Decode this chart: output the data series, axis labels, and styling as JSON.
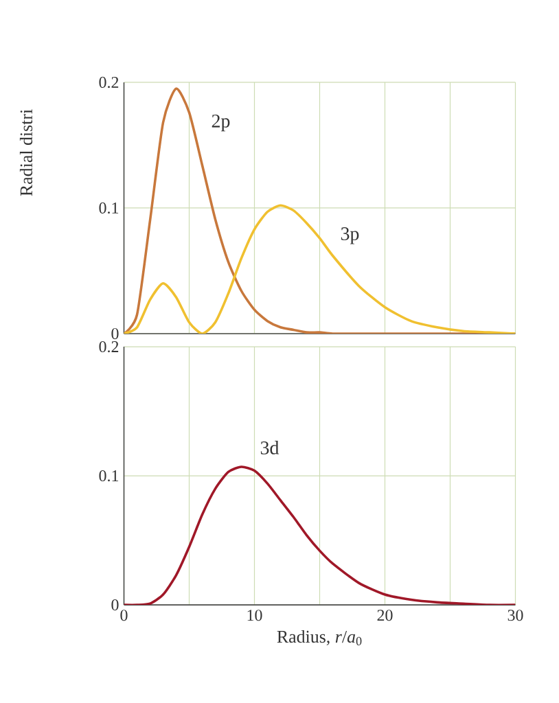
{
  "chart_data": [
    {
      "type": "line",
      "ylabel": "Radial distri",
      "xlim": [
        0,
        30
      ],
      "ylim": [
        0,
        0.2
      ],
      "xticks": [
        {
          "value": 0,
          "label": null
        },
        {
          "value": 5,
          "label": null
        },
        {
          "value": 10,
          "label": null
        },
        {
          "value": 15,
          "label": null
        },
        {
          "value": 20,
          "label": null
        },
        {
          "value": 25,
          "label": null
        },
        {
          "value": 30,
          "label": null
        }
      ],
      "yticks": [
        0,
        0.1,
        0.2
      ],
      "grid": true,
      "tick_labels": "y",
      "x": [
        0,
        1,
        2,
        3,
        4,
        5,
        6,
        7,
        8,
        9,
        10,
        11,
        12,
        13,
        14,
        15,
        16,
        18,
        20,
        22,
        24,
        26,
        28,
        30
      ],
      "series": [
        {
          "name": "2p",
          "color": "#c8783c",
          "values": [
            0,
            0.015,
            0.09,
            0.168,
            0.195,
            0.176,
            0.134,
            0.091,
            0.057,
            0.034,
            0.019,
            0.01,
            0.005,
            0.003,
            0.001,
            0.001,
            0,
            0,
            0,
            0,
            0,
            0,
            0,
            0
          ]
        },
        {
          "name": "3p",
          "color": "#f0c030",
          "values": [
            0,
            0.005,
            0.027,
            0.04,
            0.029,
            0.009,
            0,
            0.009,
            0.032,
            0.06,
            0.083,
            0.097,
            0.102,
            0.098,
            0.088,
            0.076,
            0.062,
            0.038,
            0.021,
            0.01,
            0.005,
            0.002,
            0.001,
            0
          ]
        }
      ]
    },
    {
      "type": "line",
      "xlabel": "Radius, *r*/*a*$_{0}$",
      "xlim": [
        0,
        30
      ],
      "ylim": [
        0,
        0.2
      ],
      "xticks": [
        0,
        {
          "value": 5,
          "label": null
        },
        10,
        {
          "value": 15,
          "label": null
        },
        20,
        {
          "value": 25,
          "label": null
        },
        30
      ],
      "yticks": [
        0,
        0.1,
        0.2
      ],
      "grid": true,
      "x": [
        0,
        1,
        2,
        3,
        4,
        5,
        6,
        7,
        8,
        9,
        10,
        11,
        12,
        13,
        14,
        15,
        16,
        18,
        20,
        22,
        24,
        26,
        28,
        30
      ],
      "series": [
        {
          "name": "3d",
          "color": "#a01828",
          "values": [
            0,
            0,
            0.001,
            0.008,
            0.023,
            0.045,
            0.07,
            0.09,
            0.103,
            0.107,
            0.104,
            0.094,
            0.081,
            0.068,
            0.054,
            0.042,
            0.032,
            0.017,
            0.008,
            0.004,
            0.002,
            0.001,
            0,
            0
          ]
        }
      ]
    }
  ]
}
